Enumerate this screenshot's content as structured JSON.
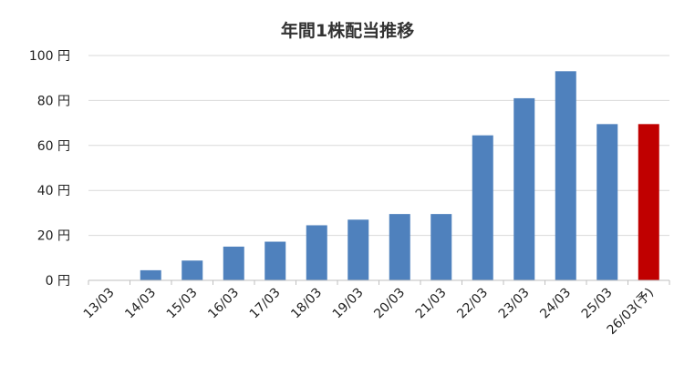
{
  "chart_data": {
    "type": "bar",
    "title": "年間1株配当推移",
    "xlabel": "",
    "ylabel": "",
    "ylim": [
      0,
      100
    ],
    "yticks": [
      0,
      20,
      40,
      60,
      80,
      100
    ],
    "ytick_labels": [
      "0 円",
      "20 円",
      "40 円",
      "60 円",
      "80 円",
      "100 円"
    ],
    "categories": [
      "13/03",
      "14/03",
      "15/03",
      "16/03",
      "17/03",
      "18/03",
      "19/03",
      "20/03",
      "21/03",
      "22/03",
      "23/03",
      "24/03",
      "25/03",
      "26/03(予)"
    ],
    "values": [
      0,
      4.5,
      8.8,
      15,
      17.2,
      24.5,
      27,
      29.5,
      29.5,
      64.5,
      81,
      93,
      69.5,
      69.5
    ],
    "bar_colors": [
      "#4f81bd",
      "#4f81bd",
      "#4f81bd",
      "#4f81bd",
      "#4f81bd",
      "#4f81bd",
      "#4f81bd",
      "#4f81bd",
      "#4f81bd",
      "#4f81bd",
      "#4f81bd",
      "#4f81bd",
      "#4f81bd",
      "#c00000"
    ],
    "grid": true,
    "legend": "none"
  }
}
